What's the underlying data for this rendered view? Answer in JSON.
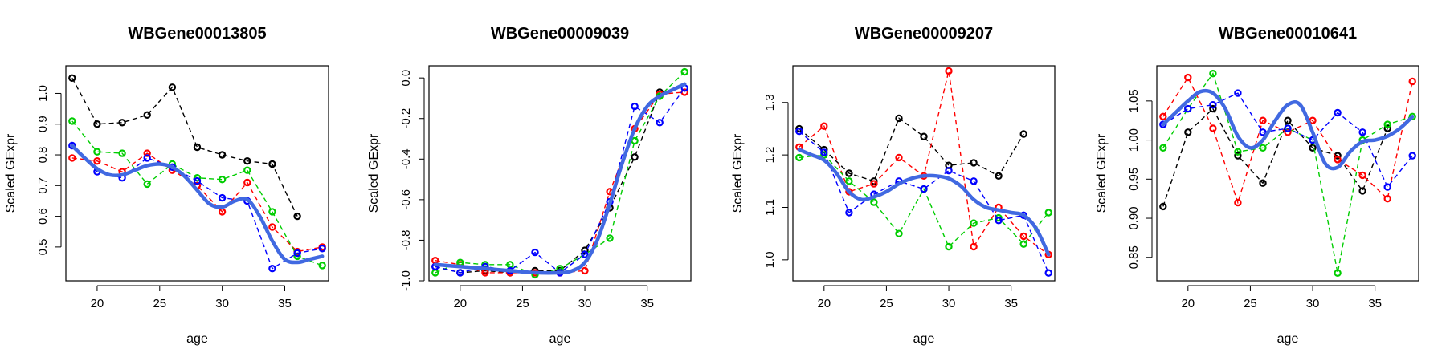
{
  "chart_data": [
    {
      "type": "line",
      "title": "WBGene00013805",
      "xlabel": "age",
      "ylabel": "Scaled GExpr",
      "xlim": [
        17.5,
        38.5
      ],
      "ylim": [
        0.39,
        1.09
      ],
      "xticks": [
        20,
        25,
        30,
        35
      ],
      "xtick_labels": [
        "20",
        "25",
        "30",
        "35"
      ],
      "yticks": [
        0.5,
        0.6,
        0.7,
        0.8,
        0.9,
        1.0
      ],
      "ytick_labels": [
        "0.5",
        "0.6",
        "0.7",
        "0.8",
        "0.9",
        "1.0"
      ],
      "series": [
        {
          "color": "#000000",
          "x": [
            18,
            20,
            22,
            24,
            26,
            28,
            30,
            32,
            34,
            36
          ],
          "y": [
            1.05,
            0.9,
            0.905,
            0.93,
            1.02,
            0.825,
            0.8,
            0.78,
            0.77,
            0.6
          ]
        },
        {
          "color": "#ff0000",
          "x": [
            18,
            20,
            22,
            24,
            26,
            28,
            30,
            32,
            34,
            36,
            38
          ],
          "y": [
            0.79,
            0.78,
            0.745,
            0.805,
            0.75,
            0.7,
            0.615,
            0.71,
            0.565,
            0.485,
            0.5
          ]
        },
        {
          "color": "#00cd00",
          "x": [
            18,
            20,
            22,
            24,
            26,
            28,
            30,
            32,
            34,
            36,
            38
          ],
          "y": [
            0.91,
            0.81,
            0.805,
            0.705,
            0.77,
            0.725,
            0.72,
            0.75,
            0.615,
            0.47,
            0.44
          ]
        },
        {
          "color": "#0000ff",
          "x": [
            18,
            20,
            22,
            24,
            26,
            28,
            30,
            32,
            34,
            36,
            38
          ],
          "y": [
            0.83,
            0.745,
            0.725,
            0.79,
            0.76,
            0.715,
            0.66,
            0.65,
            0.43,
            0.48,
            0.495
          ]
        }
      ],
      "smooth": {
        "color": "#4169e1",
        "x": [
          18,
          19,
          20,
          21,
          22,
          23,
          24,
          25,
          26,
          27,
          28,
          29,
          30,
          31,
          32,
          33,
          34,
          35,
          36,
          37,
          38
        ],
        "y": [
          0.83,
          0.79,
          0.755,
          0.735,
          0.735,
          0.75,
          0.765,
          0.77,
          0.76,
          0.73,
          0.685,
          0.64,
          0.63,
          0.65,
          0.655,
          0.6,
          0.52,
          0.46,
          0.45,
          0.46,
          0.47
        ]
      }
    },
    {
      "type": "line",
      "title": "WBGene00009039",
      "xlabel": "age",
      "ylabel": "Scaled GExpr",
      "xlim": [
        17.5,
        38.5
      ],
      "ylim": [
        -1.0,
        0.06
      ],
      "xticks": [
        20,
        25,
        30,
        35
      ],
      "xtick_labels": [
        "20",
        "25",
        "30",
        "35"
      ],
      "yticks": [
        -1.0,
        -0.8,
        -0.6,
        -0.4,
        -0.2,
        0.0
      ],
      "ytick_labels": [
        "-1.0",
        "-0.8",
        "-0.6",
        "-0.4",
        "-0.2",
        "0.0"
      ],
      "series": [
        {
          "color": "#000000",
          "x": [
            18,
            20,
            22,
            24,
            26,
            28,
            30,
            32,
            34,
            36
          ],
          "y": [
            -0.93,
            -0.96,
            -0.95,
            -0.96,
            -0.95,
            -0.95,
            -0.85,
            -0.64,
            -0.39,
            -0.07
          ]
        },
        {
          "color": "#ff0000",
          "x": [
            18,
            20,
            22,
            24,
            26,
            28,
            30,
            32,
            34,
            36,
            38
          ],
          "y": [
            -0.9,
            -0.92,
            -0.96,
            -0.96,
            -0.96,
            -0.96,
            -0.95,
            -0.56,
            -0.25,
            -0.08,
            -0.07
          ]
        },
        {
          "color": "#00cd00",
          "x": [
            18,
            20,
            22,
            24,
            26,
            28,
            30,
            32,
            34,
            36,
            38
          ],
          "y": [
            -0.96,
            -0.91,
            -0.92,
            -0.92,
            -0.97,
            -0.94,
            -0.87,
            -0.79,
            -0.31,
            -0.09,
            0.03
          ]
        },
        {
          "color": "#0000ff",
          "x": [
            18,
            20,
            22,
            24,
            26,
            28,
            30,
            32,
            34,
            36,
            38
          ],
          "y": [
            -0.93,
            -0.96,
            -0.93,
            -0.95,
            -0.86,
            -0.96,
            -0.87,
            -0.61,
            -0.14,
            -0.22,
            -0.05
          ]
        }
      ],
      "smooth": {
        "color": "#4169e1",
        "x": [
          18,
          20,
          22,
          24,
          26,
          28,
          29,
          30,
          31,
          32,
          33,
          34,
          35,
          36,
          37,
          38
        ],
        "y": [
          -0.92,
          -0.93,
          -0.94,
          -0.95,
          -0.96,
          -0.96,
          -0.95,
          -0.91,
          -0.8,
          -0.62,
          -0.42,
          -0.25,
          -0.14,
          -0.09,
          -0.06,
          -0.03
        ]
      }
    },
    {
      "type": "line",
      "title": "WBGene00009207",
      "xlabel": "age",
      "ylabel": "Scaled GExpr",
      "xlim": [
        17.5,
        38.5
      ],
      "ylim": [
        0.96,
        1.37
      ],
      "xticks": [
        20,
        25,
        30,
        35
      ],
      "xtick_labels": [
        "20",
        "25",
        "30",
        "35"
      ],
      "yticks": [
        1.0,
        1.1,
        1.2,
        1.3
      ],
      "ytick_labels": [
        "1.0",
        "1.1",
        "1.2",
        "1.3"
      ],
      "series": [
        {
          "color": "#000000",
          "x": [
            18,
            20,
            22,
            24,
            26,
            28,
            30,
            32,
            34,
            36
          ],
          "y": [
            1.25,
            1.21,
            1.165,
            1.15,
            1.27,
            1.235,
            1.18,
            1.185,
            1.16,
            1.24
          ]
        },
        {
          "color": "#ff0000",
          "x": [
            18,
            20,
            22,
            24,
            26,
            28,
            30,
            32,
            34,
            36,
            38
          ],
          "y": [
            1.215,
            1.255,
            1.13,
            1.145,
            1.195,
            1.16,
            1.36,
            1.025,
            1.1,
            1.045,
            1.01
          ]
        },
        {
          "color": "#00cd00",
          "x": [
            18,
            20,
            22,
            24,
            26,
            28,
            30,
            32,
            34,
            36,
            38
          ],
          "y": [
            1.195,
            1.2,
            1.15,
            1.11,
            1.05,
            1.135,
            1.025,
            1.07,
            1.08,
            1.03,
            1.09
          ]
        },
        {
          "color": "#0000ff",
          "x": [
            18,
            20,
            22,
            24,
            26,
            28,
            30,
            32,
            34,
            36,
            38
          ],
          "y": [
            1.245,
            1.205,
            1.09,
            1.125,
            1.15,
            1.135,
            1.17,
            1.15,
            1.075,
            1.085,
            0.975
          ]
        }
      ],
      "smooth": {
        "color": "#4169e1",
        "x": [
          18,
          19,
          20,
          21,
          22,
          23,
          24,
          25,
          26,
          27,
          28,
          29,
          30,
          31,
          32,
          33,
          34,
          35,
          36,
          37,
          38
        ],
        "y": [
          1.21,
          1.2,
          1.19,
          1.165,
          1.13,
          1.115,
          1.12,
          1.13,
          1.145,
          1.155,
          1.16,
          1.16,
          1.155,
          1.14,
          1.115,
          1.1,
          1.095,
          1.09,
          1.085,
          1.06,
          1.01
        ]
      }
    },
    {
      "type": "line",
      "title": "WBGene00010641",
      "xlabel": "age",
      "ylabel": "Scaled GExpr",
      "xlim": [
        17.5,
        38.5
      ],
      "ylim": [
        0.82,
        1.095
      ],
      "xticks": [
        20,
        25,
        30,
        35
      ],
      "xtick_labels": [
        "20",
        "25",
        "30",
        "35"
      ],
      "yticks": [
        0.85,
        0.9,
        0.95,
        1.0,
        1.05
      ],
      "ytick_labels": [
        "0.85",
        "0.90",
        "0.95",
        "1.00",
        "1.05"
      ],
      "series": [
        {
          "color": "#000000",
          "x": [
            18,
            20,
            22,
            24,
            26,
            28,
            30,
            32,
            34,
            36
          ],
          "y": [
            0.915,
            1.01,
            1.04,
            0.98,
            0.945,
            1.025,
            0.99,
            0.98,
            0.935,
            1.015
          ]
        },
        {
          "color": "#ff0000",
          "x": [
            18,
            20,
            22,
            24,
            26,
            28,
            30,
            32,
            34,
            36,
            38
          ],
          "y": [
            1.03,
            1.08,
            1.015,
            0.92,
            1.025,
            1.01,
            1.025,
            0.975,
            0.955,
            0.925,
            1.075
          ]
        },
        {
          "color": "#00cd00",
          "x": [
            18,
            20,
            22,
            24,
            26,
            28,
            30,
            32,
            34,
            36,
            38
          ],
          "y": [
            0.99,
            1.04,
            1.085,
            0.985,
            0.99,
            1.015,
            1.0,
            0.83,
            1.0,
            1.02,
            1.03
          ]
        },
        {
          "color": "#0000ff",
          "x": [
            18,
            20,
            22,
            24,
            26,
            28,
            30,
            32,
            34,
            36,
            38
          ],
          "y": [
            1.02,
            1.04,
            1.045,
            1.06,
            1.01,
            1.015,
            1.0,
            1.035,
            1.01,
            0.94,
            0.98
          ]
        }
      ],
      "smooth": {
        "color": "#4169e1",
        "x": [
          18,
          19,
          20,
          21,
          22,
          23,
          24,
          25,
          26,
          27,
          28,
          29,
          30,
          31,
          32,
          33,
          34,
          35,
          36,
          37,
          38
        ],
        "y": [
          1.02,
          1.035,
          1.05,
          1.062,
          1.06,
          1.04,
          1.005,
          0.99,
          1.0,
          1.025,
          1.045,
          1.045,
          1.01,
          0.97,
          0.965,
          0.985,
          0.998,
          1.0,
          1.005,
          1.015,
          1.03
        ]
      }
    }
  ]
}
